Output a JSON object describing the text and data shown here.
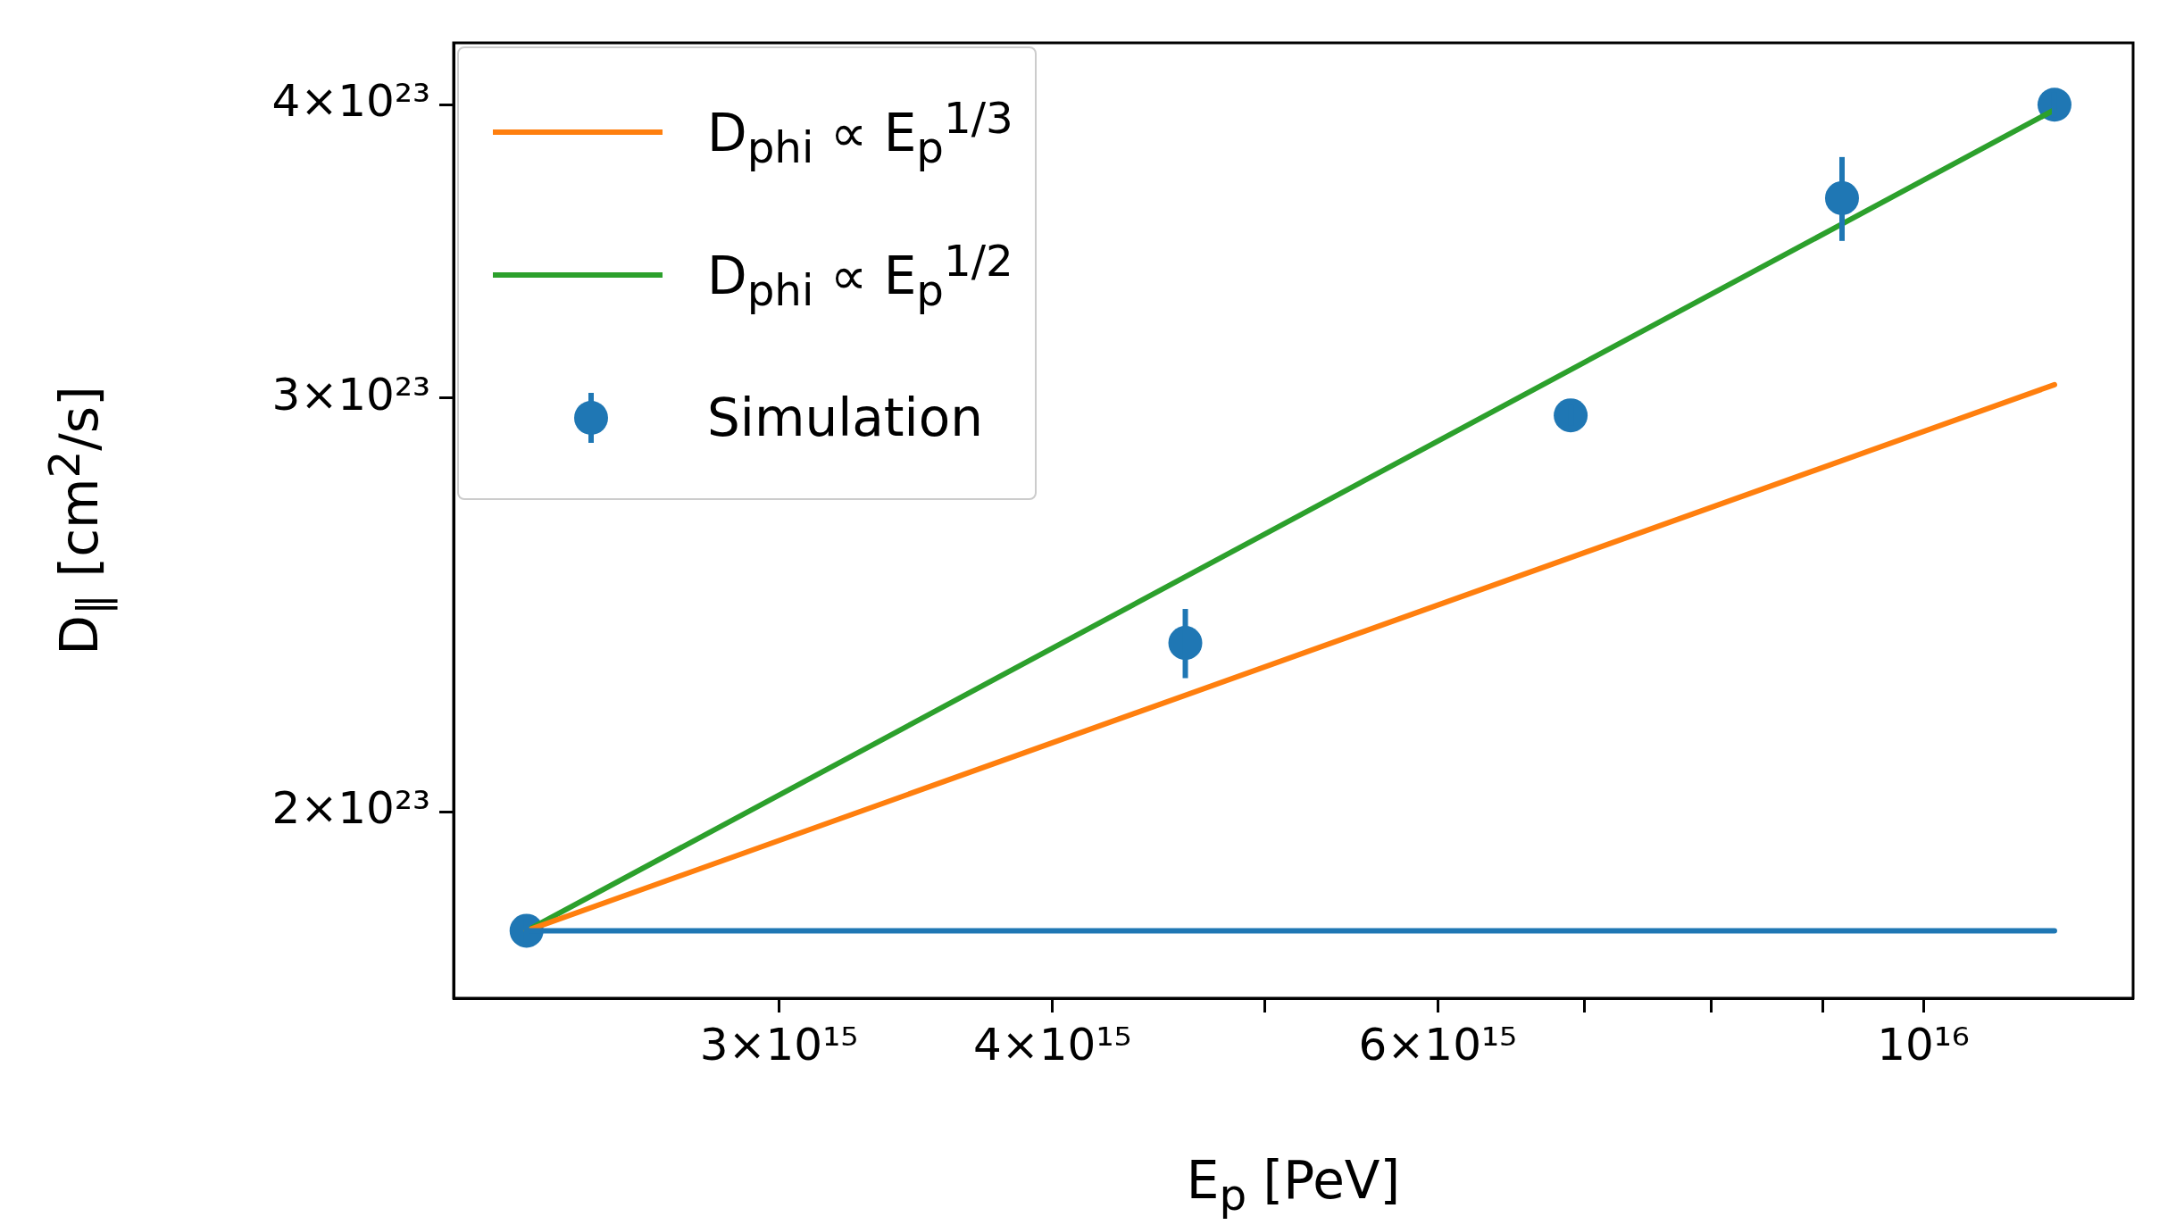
{
  "chart_data": {
    "type": "scatter",
    "xlabel": "E$_{p}$ [PeV]",
    "ylabel": "D$_{∥}$ [cm$^{2}$/s]",
    "log": "xy",
    "legend": "top left",
    "xlim": [
      2130000000000000.0,
      1.247e+16
    ],
    "ylim": [
      1.666e+23,
      4.25e+23
    ],
    "xticks": [
      {
        "value": 3000000000000000.0,
        "label": "3×10¹⁵"
      },
      {
        "value": 4000000000000000.0,
        "label": "4×10¹⁵"
      },
      {
        "value": 5000000000000000.0,
        "label": null
      },
      {
        "value": 6000000000000000.0,
        "label": "6×10¹⁵"
      },
      {
        "value": 7000000000000000.0,
        "label": null
      },
      {
        "value": 8000000000000000.0,
        "label": null
      },
      {
        "value": 9000000000000000.0,
        "label": null
      },
      {
        "value": 1e+16,
        "label": "10¹⁶"
      }
    ],
    "yticks": [
      {
        "value": 2e+23,
        "label": "2×10²³"
      },
      {
        "value": 3e+23,
        "label": "3×10²³"
      },
      {
        "value": 4e+23,
        "label": "4×10²³"
      }
    ],
    "series": [
      {
        "type": "line",
        "marker": "none",
        "color": "#1f77b4",
        "x": [
          2300000000000000.0,
          1.148e+16
        ],
        "values": [
          1.78e+23,
          1.78e+23
        ]
      },
      {
        "type": "line",
        "marker": "none",
        "name": "D$_{phi}$ ∝ E$_{p}$$^{1/3}$",
        "color": "#ff7f0e",
        "x": [
          2300000000000000.0,
          1.148e+16
        ],
        "values": [
          1.78e+23,
          3.04e+23
        ]
      },
      {
        "type": "line",
        "marker": "none",
        "name": "D$_{phi}$ ∝ E$_{p}$$^{1/2}$",
        "color": "#2ca02c",
        "x": [
          2300000000000000.0,
          1.148e+16
        ],
        "values": [
          1.78e+23,
          3.98e+23
        ]
      },
      {
        "type": "scatter",
        "marker": "circle",
        "name": "Simulation",
        "color": "#1f77b4",
        "x": [
          2300000000000000.0,
          4600000000000000.0,
          6900000000000000.0,
          9180000000000000.0,
          1.148e+16
        ],
        "values": [
          1.78e+23,
          2.36e+23,
          2.95e+23,
          3.65e+23,
          4e+23
        ],
        "errors": [
          2e+21,
          8e+21,
          3e+21,
          1.5e+22,
          5e+21
        ]
      }
    ]
  }
}
